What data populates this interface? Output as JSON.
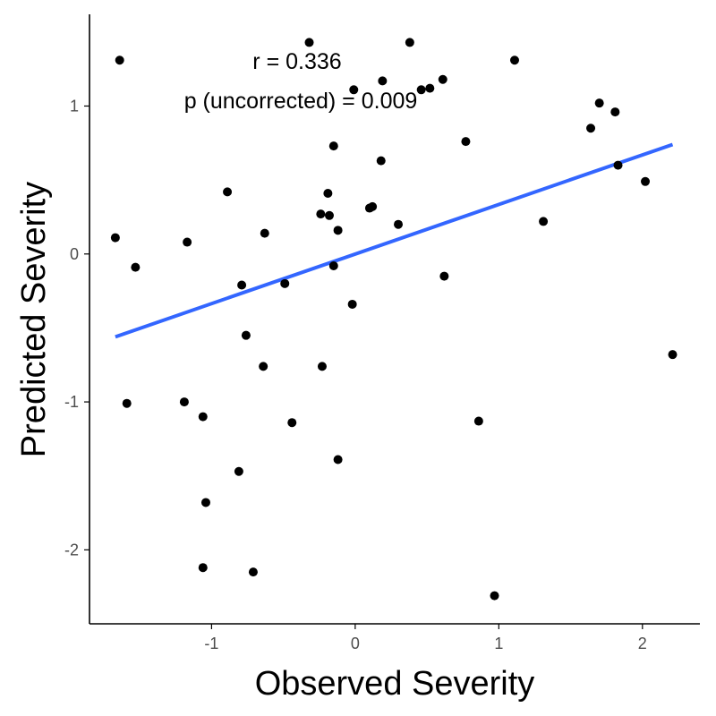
{
  "chart_data": {
    "type": "scatter",
    "xlabel": "Observed Severity",
    "ylabel": "Predicted Severity",
    "xlim": [
      -1.85,
      2.4
    ],
    "ylim": [
      -2.5,
      1.62
    ],
    "x_ticks": [
      -1,
      0,
      1,
      2
    ],
    "y_ticks": [
      -2,
      -1,
      0,
      1
    ],
    "x_tick_labels": [
      "-1",
      "0",
      "1",
      "2"
    ],
    "y_tick_labels": [
      "-2",
      "-1",
      "0",
      "1"
    ],
    "annotations": [
      "r = 0.336",
      "p (uncorrected) = 0.009"
    ],
    "point_color": "#000000",
    "fit_color": "#3366ff",
    "grid": false,
    "legend": "none",
    "points": [
      {
        "x": -1.64,
        "y": 1.31
      },
      {
        "x": -1.67,
        "y": 0.11
      },
      {
        "x": -1.53,
        "y": -0.09
      },
      {
        "x": -1.59,
        "y": -1.01
      },
      {
        "x": -1.19,
        "y": -1.0
      },
      {
        "x": -1.17,
        "y": 0.08
      },
      {
        "x": -1.06,
        "y": -1.1
      },
      {
        "x": -1.04,
        "y": -1.68
      },
      {
        "x": -1.06,
        "y": -2.12
      },
      {
        "x": -0.89,
        "y": 0.42
      },
      {
        "x": -0.81,
        "y": -1.47
      },
      {
        "x": -0.79,
        "y": -0.21
      },
      {
        "x": -0.76,
        "y": -0.55
      },
      {
        "x": -0.71,
        "y": -2.15
      },
      {
        "x": -0.64,
        "y": -0.76
      },
      {
        "x": -0.63,
        "y": 0.14
      },
      {
        "x": -0.49,
        "y": -0.2
      },
      {
        "x": -0.44,
        "y": -1.14
      },
      {
        "x": -0.32,
        "y": 1.43
      },
      {
        "x": -0.24,
        "y": 0.27
      },
      {
        "x": -0.23,
        "y": -0.76
      },
      {
        "x": -0.19,
        "y": 0.41
      },
      {
        "x": -0.18,
        "y": 0.26
      },
      {
        "x": -0.15,
        "y": 0.73
      },
      {
        "x": -0.15,
        "y": -0.08
      },
      {
        "x": -0.12,
        "y": 0.16
      },
      {
        "x": -0.12,
        "y": -1.39
      },
      {
        "x": -0.02,
        "y": -0.34
      },
      {
        "x": -0.01,
        "y": 1.11
      },
      {
        "x": 0.1,
        "y": 0.31
      },
      {
        "x": 0.12,
        "y": 0.32
      },
      {
        "x": 0.18,
        "y": 0.63
      },
      {
        "x": 0.19,
        "y": 1.17
      },
      {
        "x": 0.3,
        "y": 0.2
      },
      {
        "x": 0.38,
        "y": 1.43
      },
      {
        "x": 0.46,
        "y": 1.11
      },
      {
        "x": 0.52,
        "y": 1.12
      },
      {
        "x": 0.61,
        "y": 1.18
      },
      {
        "x": 0.62,
        "y": -0.15
      },
      {
        "x": 0.77,
        "y": 0.76
      },
      {
        "x": 0.86,
        "y": -1.13
      },
      {
        "x": 0.97,
        "y": -2.31
      },
      {
        "x": 1.11,
        "y": 1.31
      },
      {
        "x": 1.31,
        "y": 0.22
      },
      {
        "x": 1.64,
        "y": 0.85
      },
      {
        "x": 1.7,
        "y": 1.02
      },
      {
        "x": 1.81,
        "y": 0.96
      },
      {
        "x": 1.83,
        "y": 0.6
      },
      {
        "x": 2.02,
        "y": 0.49
      },
      {
        "x": 2.21,
        "y": -0.68
      }
    ],
    "fit_line": {
      "x": [
        -1.67,
        2.21
      ],
      "y": [
        -0.56,
        0.74
      ]
    }
  }
}
